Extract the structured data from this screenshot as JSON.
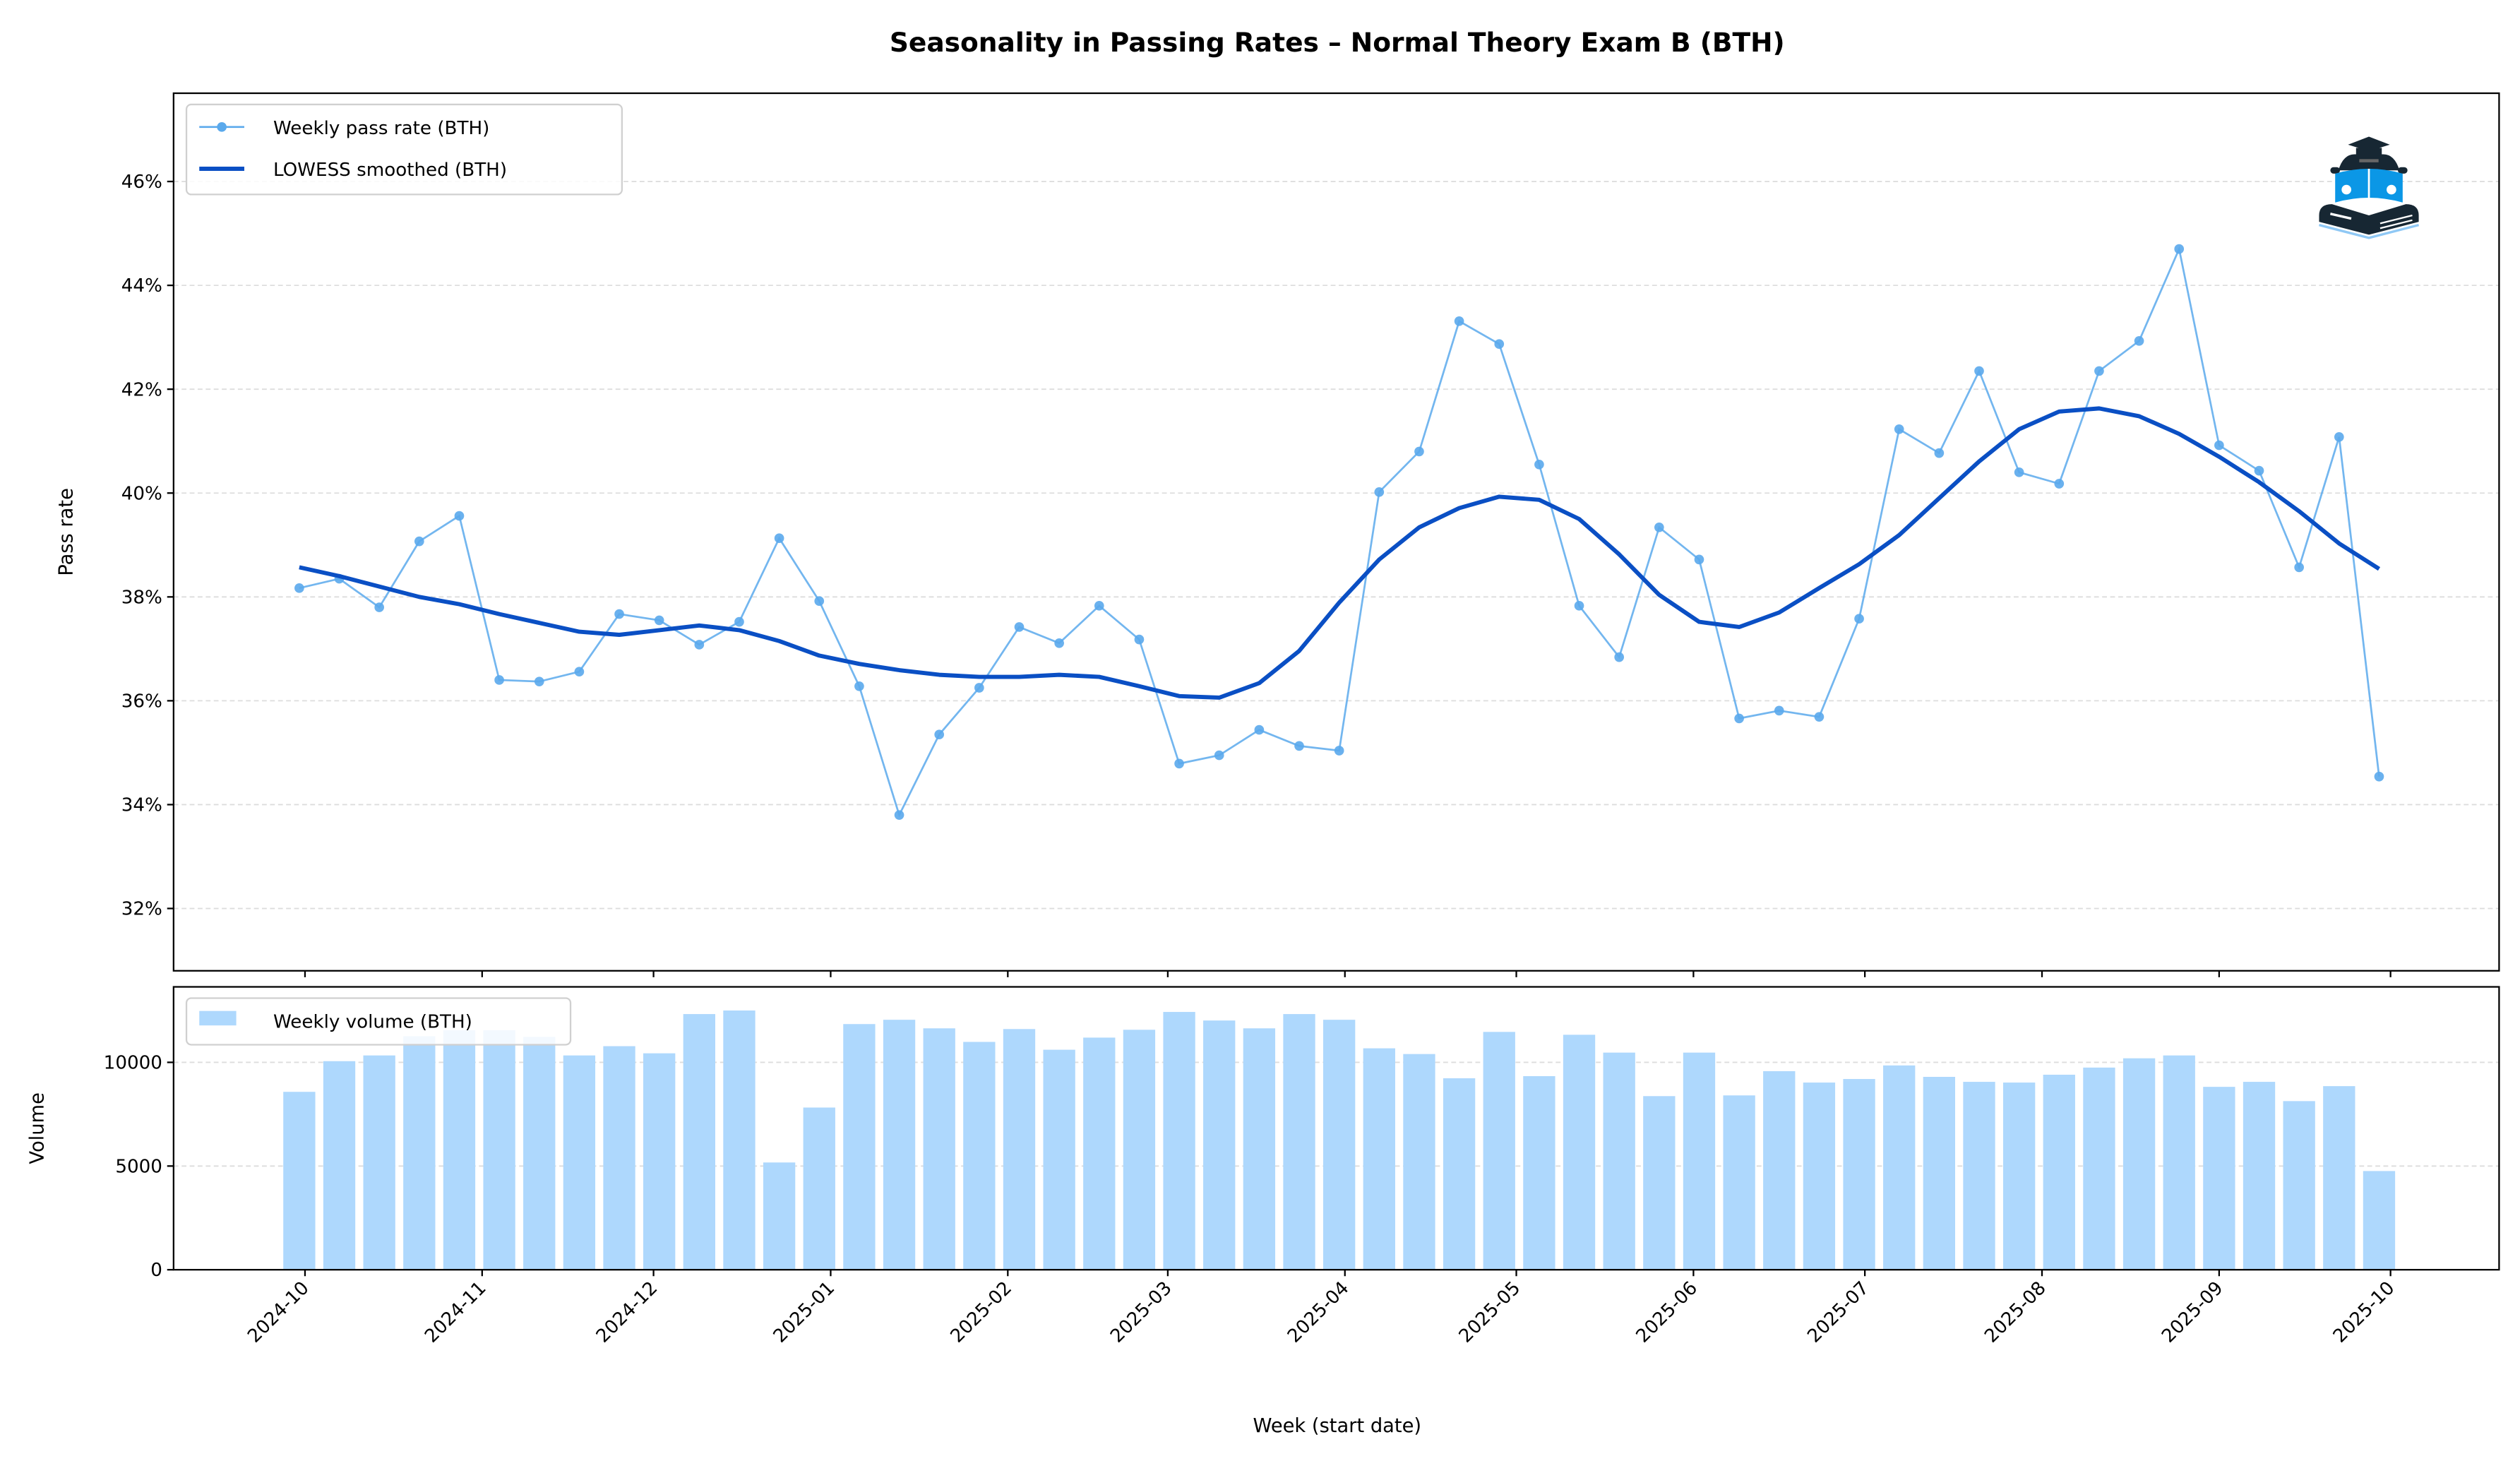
{
  "chart_data": [
    {
      "type": "line",
      "title": "Seasonality in Passing Rates – Normal Theory Exam B (BTH)",
      "xlabel": "",
      "ylabel": "Pass rate",
      "ylim": [
        30.8,
        47.7
      ],
      "yticks": [
        32,
        34,
        36,
        38,
        40,
        42,
        44,
        46
      ],
      "ytick_labels": [
        "32%",
        "34%",
        "36%",
        "38%",
        "40%",
        "42%",
        "44%",
        "46%"
      ],
      "grid": "horizontal dashed",
      "legend": "top-left",
      "x": [
        "2024-09-30",
        "2024-10-07",
        "2024-10-14",
        "2024-10-21",
        "2024-10-28",
        "2024-11-04",
        "2024-11-11",
        "2024-11-18",
        "2024-11-25",
        "2024-12-02",
        "2024-12-09",
        "2024-12-16",
        "2024-12-23",
        "2024-12-30",
        "2025-01-06",
        "2025-01-13",
        "2025-01-20",
        "2025-01-27",
        "2025-02-03",
        "2025-02-10",
        "2025-02-17",
        "2025-02-24",
        "2025-03-03",
        "2025-03-10",
        "2025-03-17",
        "2025-03-24",
        "2025-03-31",
        "2025-04-07",
        "2025-04-14",
        "2025-04-21",
        "2025-04-28",
        "2025-05-05",
        "2025-05-12",
        "2025-05-19",
        "2025-05-26",
        "2025-06-02",
        "2025-06-09",
        "2025-06-16",
        "2025-06-23",
        "2025-06-30",
        "2025-07-07",
        "2025-07-14",
        "2025-07-21",
        "2025-07-28",
        "2025-08-04",
        "2025-08-11",
        "2025-08-18",
        "2025-08-25",
        "2025-09-01",
        "2025-09-08",
        "2025-09-15",
        "2025-09-22",
        "2025-09-29"
      ],
      "series": [
        {
          "name": "Weekly pass rate (BTH)",
          "color": "#5aa9ec",
          "marker": "circle",
          "values": [
            38.17,
            38.35,
            37.8,
            39.07,
            39.56,
            36.4,
            36.37,
            36.56,
            37.67,
            37.55,
            37.08,
            37.52,
            39.13,
            37.92,
            36.28,
            33.8,
            35.35,
            36.25,
            37.42,
            37.11,
            37.83,
            37.18,
            34.79,
            34.95,
            35.44,
            35.13,
            35.04,
            40.02,
            40.8,
            43.31,
            42.87,
            40.55,
            37.83,
            36.84,
            39.34,
            38.72,
            35.66,
            35.81,
            35.69,
            37.58,
            41.23,
            40.77,
            42.35,
            40.4,
            40.18,
            42.35,
            42.93,
            44.7,
            40.92,
            40.43,
            38.57,
            41.08,
            34.54
          ]
        },
        {
          "name": "LOWESS smoothed (BTH)",
          "color": "#0a4fc4",
          "values": [
            38.57,
            38.4,
            38.2,
            38.0,
            37.86,
            37.67,
            37.5,
            37.33,
            37.27,
            37.36,
            37.45,
            37.36,
            37.15,
            36.87,
            36.71,
            36.59,
            36.5,
            36.46,
            36.46,
            36.5,
            36.46,
            36.28,
            36.09,
            36.06,
            36.34,
            36.96,
            37.89,
            38.72,
            39.34,
            39.71,
            39.93,
            39.87,
            39.5,
            38.82,
            38.04,
            37.52,
            37.42,
            37.7,
            38.17,
            38.63,
            39.19,
            39.9,
            40.61,
            41.23,
            41.57,
            41.63,
            41.48,
            41.14,
            40.7,
            40.21,
            39.65,
            39.03,
            38.54
          ]
        }
      ]
    },
    {
      "type": "bar",
      "xlabel": "Week (start date)",
      "ylabel": "Volume",
      "ylim": [
        0,
        13640
      ],
      "yticks": [
        0,
        5000,
        10000
      ],
      "ytick_labels": [
        "0",
        "5000",
        "10000"
      ],
      "xlim": [
        "2024-09-08",
        "2025-10-20"
      ],
      "xtick_labels": [
        "2024-10",
        "2024-11",
        "2024-12",
        "2025-01",
        "2025-02",
        "2025-03",
        "2025-04",
        "2025-05",
        "2025-06",
        "2025-07",
        "2025-08",
        "2025-09",
        "2025-10"
      ],
      "xticks": [
        "2024-10-01",
        "2024-11-01",
        "2024-12-01",
        "2025-01-01",
        "2025-02-01",
        "2025-03-01",
        "2025-04-01",
        "2025-05-01",
        "2025-06-01",
        "2025-07-01",
        "2025-08-01",
        "2025-09-01",
        "2025-10-01"
      ],
      "grid": "horizontal dashed",
      "legend": "top-left",
      "series": [
        {
          "name": "Weekly volume (BTH)",
          "color": "#aed8fd",
          "values": [
            8578,
            10057,
            10333,
            11260,
            11550,
            11550,
            11230,
            10333,
            10780,
            10436,
            12328,
            12500,
            5172,
            7821,
            11846,
            12053,
            11640,
            10986,
            11606,
            10608,
            11193,
            11571,
            12431,
            12018,
            11640,
            12328,
            12053,
            10677,
            10401,
            9232,
            11468,
            9335,
            11330,
            10470,
            8372,
            10470,
            8406,
            9576,
            9025,
            9197,
            9851,
            9300,
            9060,
            9025,
            9404,
            9748,
            10195,
            10333,
            8819,
            9060,
            8131,
            8853,
            4759
          ]
        }
      ]
    }
  ],
  "logo": {
    "name": "car-book-graduation-cap-icon",
    "colors": [
      "#172733",
      "#0b97e6"
    ]
  }
}
